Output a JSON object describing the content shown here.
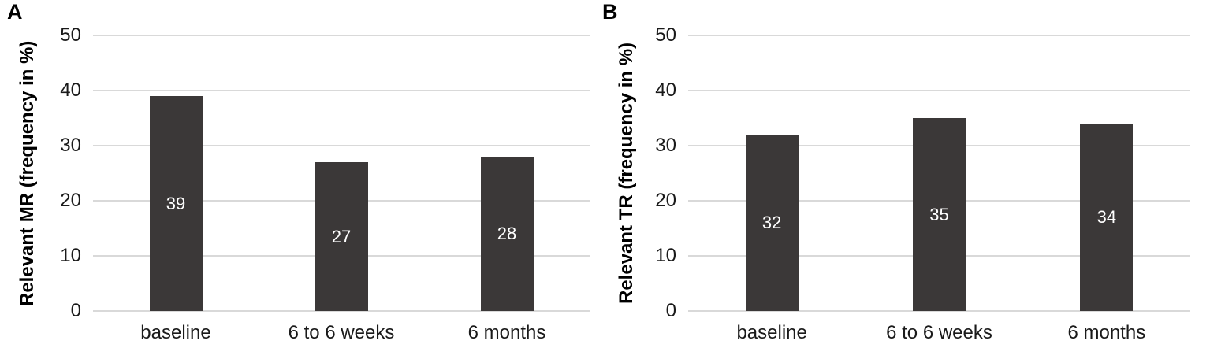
{
  "colors": {
    "bar_fill": "#3b3838",
    "gridline": "#d9d9d9",
    "bar_label_text": "#ffffff",
    "axis_text": "#1a1a1a",
    "title_text": "#000000",
    "background": "#ffffff"
  },
  "chart_data": [
    {
      "type": "bar",
      "panel_label": "A",
      "title": "",
      "xlabel": "",
      "ylabel": "Relevant MR (frequency in %)",
      "categories": [
        "baseline",
        "6 to 6 weeks",
        "6 months"
      ],
      "values": [
        39,
        27,
        28
      ],
      "data_labels": [
        "39",
        "27",
        "28"
      ],
      "ylim": [
        0,
        50
      ],
      "yticks": [
        0,
        10,
        20,
        30,
        40,
        50
      ],
      "grid": "horizontal",
      "legend": "none"
    },
    {
      "type": "bar",
      "panel_label": "B",
      "title": "",
      "xlabel": "",
      "ylabel": "Relevant TR (frequency in %)",
      "categories": [
        "baseline",
        "6 to 6 weeks",
        "6 months"
      ],
      "values": [
        32,
        35,
        34
      ],
      "data_labels": [
        "32",
        "35",
        "34"
      ],
      "ylim": [
        0,
        50
      ],
      "yticks": [
        0,
        10,
        20,
        30,
        40,
        50
      ],
      "grid": "horizontal",
      "legend": "none"
    }
  ]
}
